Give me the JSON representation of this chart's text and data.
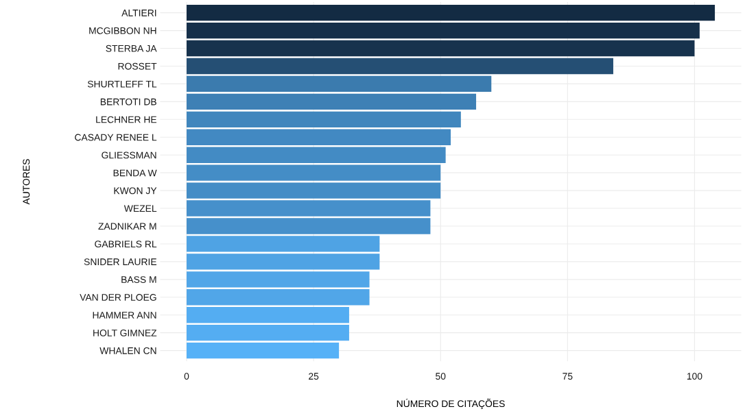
{
  "chart_data": {
    "type": "bar",
    "orientation": "horizontal",
    "xlabel": "NÚMERO DE CITAÇÕES",
    "ylabel": "AUTORES",
    "categories": [
      "ALTIERI",
      "MCGIBBON NH",
      "STERBA JA",
      "ROSSET",
      "SHURTLEFF TL",
      "BERTOTI DB",
      "LECHNER HE",
      "CASADY RENEE L",
      "GLIESSMAN",
      "BENDA W",
      "KWON JY",
      "WEZEL",
      "ZADNIKAR M",
      "GABRIELS RL",
      "SNIDER LAURIE",
      "BASS M",
      "VAN DER PLOEG",
      "HAMMER ANN",
      "HOLT GIMNEZ",
      "WHALEN CN"
    ],
    "values": [
      104,
      101,
      100,
      84,
      60,
      57,
      54,
      52,
      51,
      50,
      50,
      48,
      48,
      38,
      38,
      36,
      36,
      32,
      32,
      30
    ],
    "colors": [
      "#132B43",
      "#16304A",
      "#17324D",
      "#254F74",
      "#3B7BAE",
      "#3E80B5",
      "#4086BD",
      "#4289C2",
      "#438BC4",
      "#448DC6",
      "#448DC6",
      "#4690CB",
      "#4690CB",
      "#4FA3E4",
      "#4FA3E4",
      "#51A6E8",
      "#51A6E8",
      "#54ADF2",
      "#54ADF2",
      "#56B1F7"
    ],
    "xlim": [
      -5.2,
      109.2
    ],
    "xticks": [
      0,
      25,
      50,
      75,
      100
    ],
    "grid": true
  }
}
